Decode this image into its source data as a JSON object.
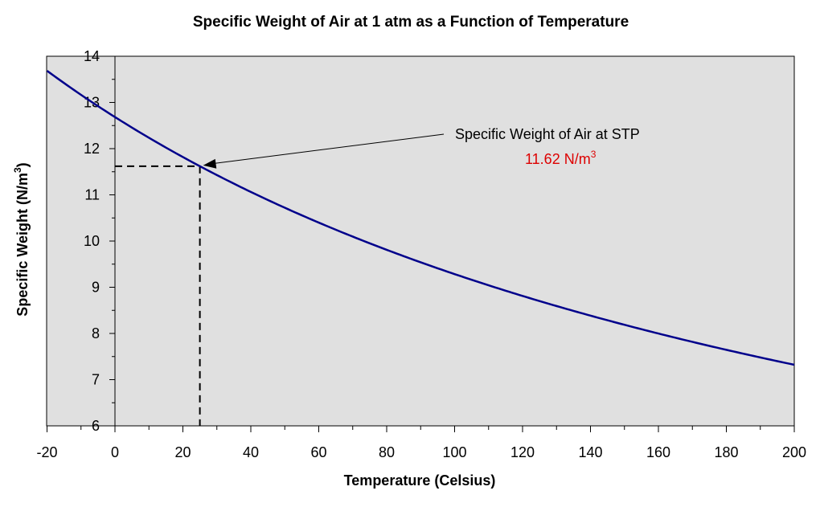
{
  "chart_data": {
    "type": "line",
    "title": "Specific Weight of Air at 1 atm as a Function of Temperature",
    "xlabel": "Temperature (Celsius)",
    "ylabel": {
      "base": "Specific Weight (N/m",
      "sup": "3",
      "end": ")"
    },
    "xlim": [
      -20,
      200
    ],
    "ylim": [
      6,
      14
    ],
    "x_major_ticks": [
      -20,
      0,
      20,
      40,
      60,
      80,
      100,
      120,
      140,
      160,
      180,
      200
    ],
    "x_minor_step": 10,
    "y_major_ticks": [
      6,
      7,
      8,
      9,
      10,
      11,
      12,
      13,
      14
    ],
    "y_minor_step": 0.5,
    "grid": false,
    "series": [
      {
        "name": "Specific Weight of Air",
        "color": "#00008b",
        "x": [
          -20,
          0,
          20,
          25,
          40,
          60,
          80,
          100,
          120,
          140,
          160,
          180,
          200
        ],
        "y": [
          13.69,
          12.68,
          11.82,
          11.62,
          11.06,
          10.4,
          9.81,
          9.29,
          8.82,
          8.4,
          8.01,
          7.66,
          7.33
        ]
      }
    ],
    "reference_lines": {
      "x": 25,
      "y": 11.62,
      "style": "dashed",
      "color": "#000000"
    },
    "annotation": {
      "text": "Specific Weight of Air at STP",
      "value_text": "11.62 N/m",
      "value_sup": "3",
      "value_color": "#dd0000",
      "point": {
        "x": 25,
        "y": 11.62
      }
    },
    "plot_background": "#e0e0e0"
  }
}
